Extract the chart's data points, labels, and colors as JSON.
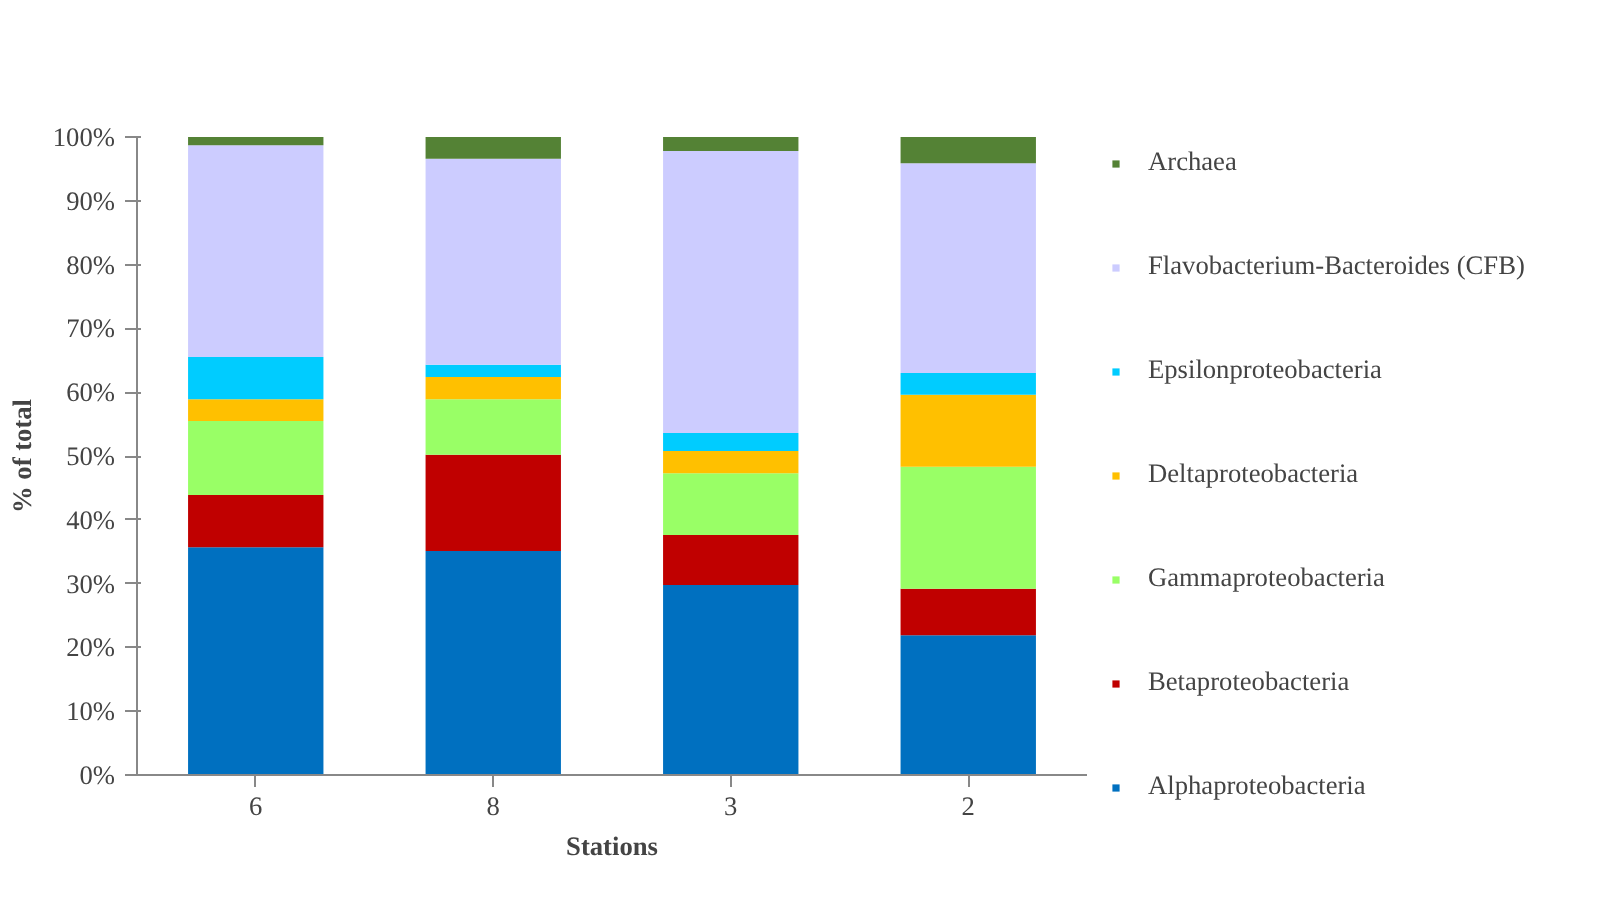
{
  "chart_data": {
    "type": "bar",
    "stacked": true,
    "xlabel": "Stations",
    "ylabel": "% of total",
    "categories": [
      "6",
      "8",
      "3",
      "2"
    ],
    "series": [
      {
        "name": "Alphaproteobacteria",
        "color": "#0070c0",
        "values": [
          35.7,
          35.1,
          29.8,
          21.9
        ]
      },
      {
        "name": "Betaproteobacteria",
        "color": "#c00000",
        "values": [
          8.2,
          15.1,
          7.8,
          7.3
        ]
      },
      {
        "name": "Gammaproteobacteria",
        "color": "#99ff66",
        "values": [
          11.6,
          8.7,
          9.7,
          19.1
        ]
      },
      {
        "name": "Deltaproteobacteria",
        "color": "#ffc000",
        "values": [
          3.4,
          3.5,
          3.5,
          11.3
        ]
      },
      {
        "name": "Epsilonproteobacteria",
        "color": "#00ccff",
        "values": [
          6.6,
          1.9,
          2.8,
          3.4
        ]
      },
      {
        "name": "Flavobacterium-Bacteroides (CFB)",
        "color": "#ccccff",
        "values": [
          33.2,
          32.3,
          44.2,
          32.9
        ]
      },
      {
        "name": "Archaea",
        "color": "#548235",
        "values": [
          1.3,
          3.4,
          2.2,
          4.1
        ]
      }
    ],
    "ylim": [
      0,
      100
    ],
    "yticks": [
      {
        "value": 0,
        "label": "0%"
      },
      {
        "value": 10,
        "label": "10%"
      },
      {
        "value": 20,
        "label": "20%"
      },
      {
        "value": 30,
        "label": "30%"
      },
      {
        "value": 40,
        "label": "40%"
      },
      {
        "value": 50,
        "label": "50%"
      },
      {
        "value": 60,
        "label": "60%"
      },
      {
        "value": 70,
        "label": "70%"
      },
      {
        "value": 80,
        "label": "80%"
      },
      {
        "value": 90,
        "label": "90%"
      },
      {
        "value": 100,
        "label": "100%"
      }
    ],
    "grid": false,
    "legend": "right"
  }
}
